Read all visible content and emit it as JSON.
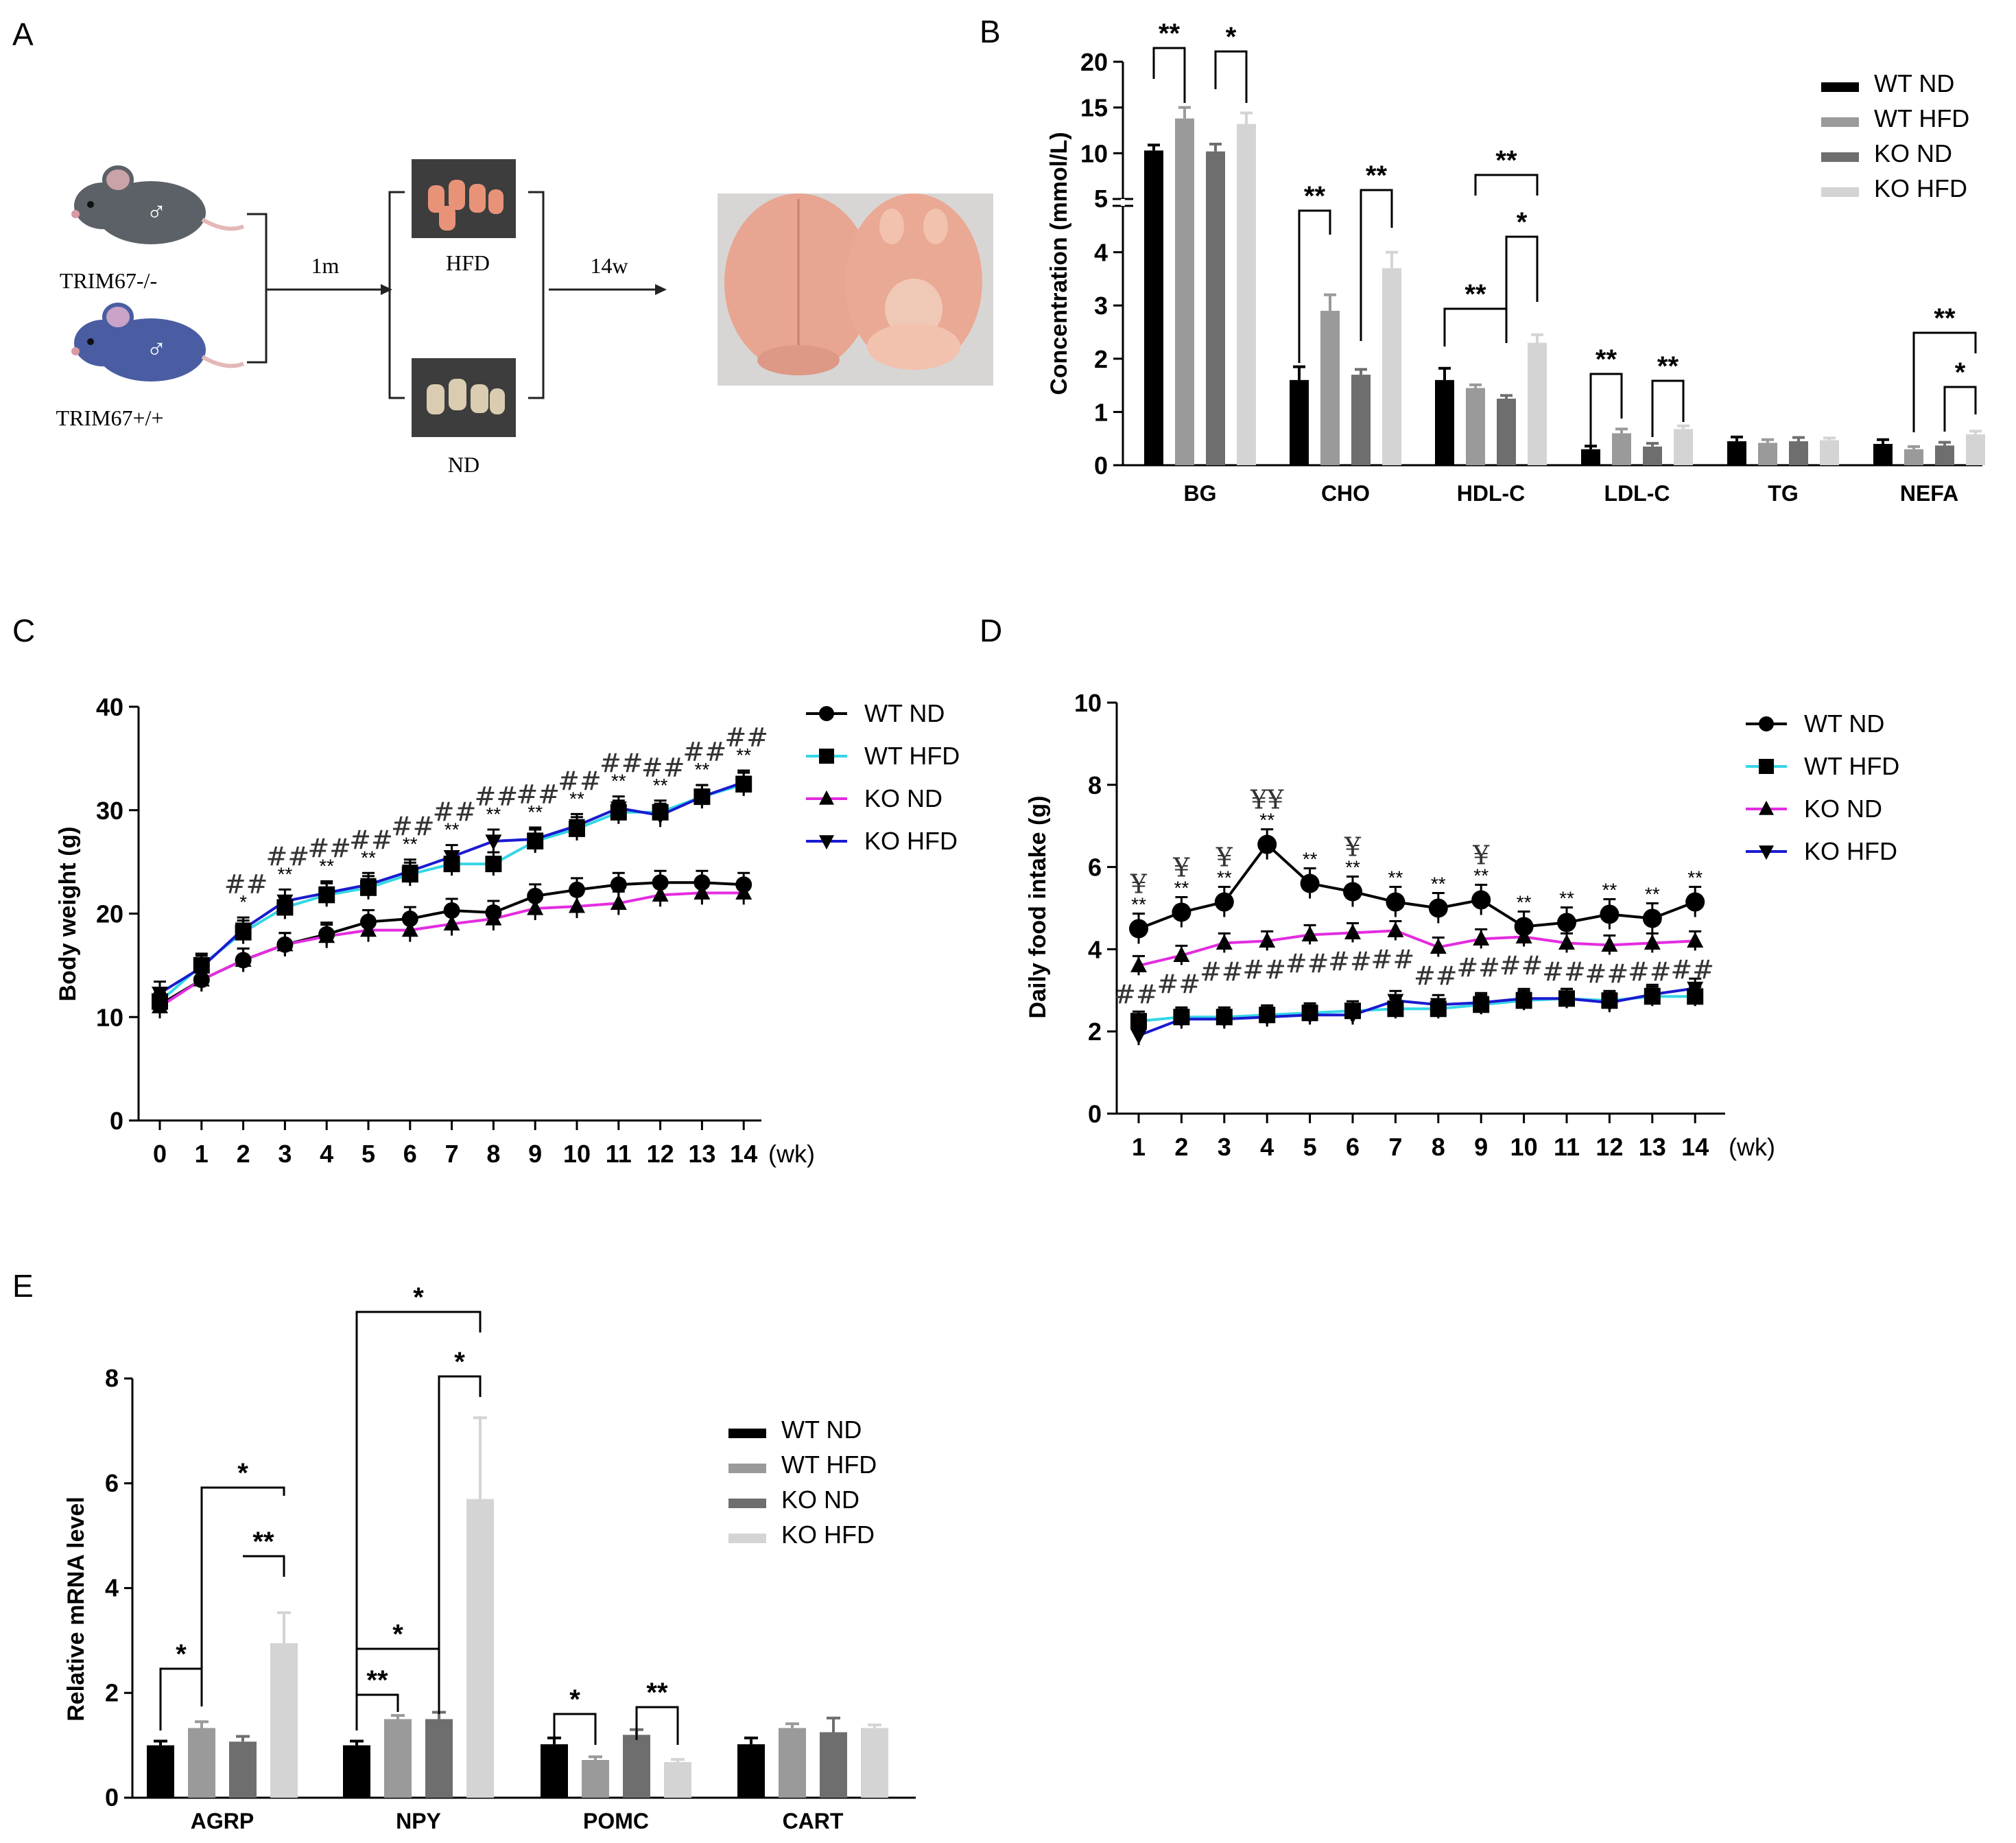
{
  "panels": {
    "a": "A",
    "b": "B",
    "c": "C",
    "d": "D",
    "e": "E"
  },
  "schematic": {
    "ko_label": "TRIM67-/-",
    "wt_label": "TRIM67+/+",
    "step1": "1m",
    "hfd": "HFD",
    "nd": "ND",
    "step2": "14w",
    "male_symbol": "♂"
  },
  "colors": {
    "wt_nd": "#000000",
    "wt_hfd": "#9a9a9a",
    "ko_nd": "#6e6e6e",
    "ko_hfd": "#d4d4d4",
    "line_wt_nd": "#000000",
    "line_wt_hfd": "#35d6e6",
    "line_ko_nd": "#e32ce0",
    "line_ko_hfd": "#1a1ad0"
  },
  "chart_data": [
    {
      "id": "B",
      "type": "bar",
      "ylabel": "Concentration (mmol/L)",
      "categories": [
        "BG",
        "CHO",
        "HDL-C",
        "LDL-C",
        "TG",
        "NEFA"
      ],
      "yticks_lower": [
        "0",
        "1",
        "2",
        "3",
        "4",
        "5"
      ],
      "yticks_upper": [
        "10",
        "15",
        "20"
      ],
      "ylim_lower": [
        0,
        5
      ],
      "ylim_upper": [
        5,
        20
      ],
      "legend": [
        "WT ND",
        "WT HFD",
        "KO ND",
        "KO HFD"
      ],
      "series": [
        {
          "name": "WT ND",
          "values": [
            10.3,
            1.6,
            1.6,
            0.3,
            0.45,
            0.4
          ],
          "errors": [
            0.6,
            0.25,
            0.22,
            0.06,
            0.08,
            0.08
          ]
        },
        {
          "name": "WT HFD",
          "values": [
            13.8,
            2.9,
            1.45,
            0.6,
            0.42,
            0.3
          ],
          "errors": [
            1.2,
            0.3,
            0.06,
            0.08,
            0.06,
            0.05
          ]
        },
        {
          "name": "KO ND",
          "values": [
            10.2,
            1.7,
            1.25,
            0.35,
            0.45,
            0.37
          ],
          "errors": [
            0.8,
            0.1,
            0.06,
            0.06,
            0.07,
            0.06
          ]
        },
        {
          "name": "KO HFD",
          "values": [
            13.2,
            3.7,
            2.3,
            0.68,
            0.47,
            0.58
          ],
          "errors": [
            1.2,
            0.3,
            0.15,
            0.06,
            0.04,
            0.06
          ]
        }
      ],
      "significance": [
        "**",
        "*",
        "**",
        "**",
        "**",
        "*",
        "**",
        "**",
        "**",
        "**",
        "*"
      ]
    },
    {
      "id": "C",
      "type": "line",
      "ylabel": "Body weight (g)",
      "xunit": "(wk)",
      "x": [
        0,
        1,
        2,
        3,
        4,
        5,
        6,
        7,
        8,
        9,
        10,
        11,
        12,
        13,
        14
      ],
      "xticks": [
        "0",
        "1",
        "2",
        "3",
        "4",
        "5",
        "6",
        "7",
        "8",
        "9",
        "10",
        "11",
        "12",
        "13",
        "14"
      ],
      "yticks": [
        "0",
        "10",
        "20",
        "30",
        "40"
      ],
      "ylim": [
        0,
        40
      ],
      "legend": [
        "WT ND",
        "WT HFD",
        "KO ND",
        "KO HFD"
      ],
      "series": [
        {
          "name": "WT ND",
          "values": [
            11.2,
            13.6,
            15.5,
            17.0,
            18.0,
            19.2,
            19.5,
            20.3,
            20.1,
            21.7,
            22.3,
            22.8,
            23.0,
            23.0,
            22.8
          ]
        },
        {
          "name": "WT HFD",
          "values": [
            11.5,
            15.0,
            18.2,
            20.6,
            21.8,
            22.5,
            23.8,
            24.8,
            24.8,
            27.0,
            28.2,
            29.8,
            29.8,
            31.3,
            32.5
          ]
        },
        {
          "name": "KO ND",
          "values": [
            11.0,
            13.6,
            15.5,
            17.0,
            17.8,
            18.4,
            18.4,
            19.0,
            19.5,
            20.5,
            20.7,
            21.0,
            21.8,
            22.0,
            22.0
          ]
        },
        {
          "name": "KO HFD",
          "values": [
            12.3,
            14.8,
            18.5,
            21.2,
            22.0,
            22.8,
            24.1,
            25.5,
            27.0,
            27.2,
            28.5,
            30.2,
            29.5,
            31.3,
            32.7
          ]
        }
      ],
      "annotations": {
        "stars": [
          "",
          "",
          "*",
          "**",
          "**",
          "**",
          "**",
          "**",
          "**",
          "**",
          "**",
          "**",
          "**",
          "**",
          "**"
        ],
        "hashes": [
          "",
          "",
          "##",
          "##",
          "##",
          "##",
          "##",
          "##",
          "##",
          "##",
          "##",
          "##",
          "##",
          "##",
          "##"
        ]
      }
    },
    {
      "id": "D",
      "type": "line",
      "ylabel": "Daily food intake (g)",
      "xunit": "(wk)",
      "x": [
        1,
        2,
        3,
        4,
        5,
        6,
        7,
        8,
        9,
        10,
        11,
        12,
        13,
        14
      ],
      "xticks": [
        "1",
        "2",
        "3",
        "4",
        "5",
        "6",
        "7",
        "8",
        "9",
        "10",
        "11",
        "12",
        "13",
        "14"
      ],
      "yticks": [
        "0",
        "2",
        "4",
        "6",
        "8",
        "10"
      ],
      "ylim": [
        0,
        10
      ],
      "legend": [
        "WT ND",
        "WT HFD",
        "KO ND",
        "KO HFD"
      ],
      "series": [
        {
          "name": "WT ND",
          "values": [
            4.5,
            4.9,
            5.15,
            6.55,
            5.6,
            5.4,
            5.15,
            5.0,
            5.2,
            4.55,
            4.65,
            4.85,
            4.75,
            5.15
          ]
        },
        {
          "name": "WT HFD",
          "values": [
            2.25,
            2.35,
            2.35,
            2.4,
            2.45,
            2.5,
            2.55,
            2.55,
            2.65,
            2.75,
            2.8,
            2.75,
            2.85,
            2.85
          ]
        },
        {
          "name": "KO ND",
          "values": [
            3.6,
            3.85,
            4.15,
            4.2,
            4.35,
            4.4,
            4.45,
            4.05,
            4.25,
            4.3,
            4.15,
            4.1,
            4.15,
            4.2
          ]
        },
        {
          "name": "KO HFD",
          "values": [
            1.9,
            2.3,
            2.3,
            2.35,
            2.4,
            2.4,
            2.75,
            2.65,
            2.7,
            2.8,
            2.8,
            2.7,
            2.9,
            3.05
          ]
        }
      ],
      "annotations": {
        "stars": [
          "**",
          "**",
          "**",
          "**",
          "**",
          "**",
          "**",
          "**",
          "**",
          "**",
          "**",
          "**",
          "**",
          "**"
        ],
        "yen": [
          "¥",
          "¥",
          "¥",
          "¥¥",
          "",
          "¥",
          "",
          "",
          "¥",
          "",
          "",
          "",
          "",
          ""
        ],
        "hashes": [
          "##",
          "##",
          "##",
          "##",
          "##",
          "##",
          "##",
          "##",
          "##",
          "##",
          "##",
          "##",
          "##",
          "##"
        ]
      }
    },
    {
      "id": "E",
      "type": "bar",
      "ylabel": "Relative mRNA level",
      "categories": [
        "AGRP",
        "NPY",
        "POMC",
        "CART"
      ],
      "yticks": [
        "0",
        "2",
        "4",
        "6",
        "8"
      ],
      "ylim": [
        0,
        8
      ],
      "legend": [
        "WT ND",
        "WT HFD",
        "KO ND",
        "KO HFD"
      ],
      "series": [
        {
          "name": "WT ND",
          "values": [
            1.0,
            1.0,
            1.02,
            1.02
          ],
          "errors": [
            0.08,
            0.08,
            0.12,
            0.12
          ]
        },
        {
          "name": "WT HFD",
          "values": [
            1.33,
            1.5,
            0.72,
            1.33
          ],
          "errors": [
            0.12,
            0.07,
            0.06,
            0.08
          ]
        },
        {
          "name": "KO ND",
          "values": [
            1.07,
            1.5,
            1.2,
            1.25
          ],
          "errors": [
            0.1,
            0.13,
            0.1,
            0.27
          ]
        },
        {
          "name": "KO HFD",
          "values": [
            2.95,
            5.7,
            0.68,
            1.33
          ],
          "errors": [
            0.58,
            1.55,
            0.05,
            0.06
          ]
        }
      ],
      "significance": [
        "*",
        "*",
        "**",
        "**",
        "*",
        "*",
        "*",
        "*",
        "**"
      ]
    }
  ]
}
